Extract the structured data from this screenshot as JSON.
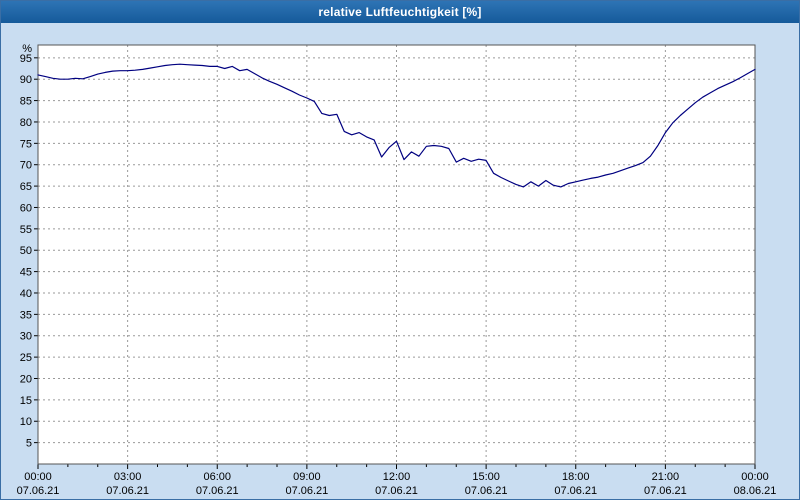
{
  "window": {
    "title": "relative Luftfeuchtigkeit [%]"
  },
  "colors": {
    "background": "#c9ddf1",
    "titlebar": "#1d63a8",
    "plot_background": "#ffffff",
    "plot_border": "#555555",
    "gridline": "#9a9a9a",
    "line": "#000080",
    "title_text": "#ffffff"
  },
  "chart_data": {
    "type": "line",
    "title": "relative Luftfeuchtigkeit [%]",
    "xlabel": "",
    "ylabel": "%",
    "unit_label": "%",
    "ylim": [
      0,
      98
    ],
    "xlim_hours": [
      0,
      24
    ],
    "grid": true,
    "legend": "none",
    "y_ticks": [
      95,
      90,
      85,
      80,
      75,
      70,
      65,
      60,
      55,
      50,
      45,
      40,
      35,
      30,
      25,
      20,
      15,
      10,
      5
    ],
    "x_ticks": [
      {
        "hour": 0,
        "time": "00:00",
        "date": "07.06.21"
      },
      {
        "hour": 3,
        "time": "03:00",
        "date": "07.06.21"
      },
      {
        "hour": 6,
        "time": "06:00",
        "date": "07.06.21"
      },
      {
        "hour": 9,
        "time": "09:00",
        "date": "07.06.21"
      },
      {
        "hour": 12,
        "time": "12:00",
        "date": "07.06.21"
      },
      {
        "hour": 15,
        "time": "15:00",
        "date": "07.06.21"
      },
      {
        "hour": 18,
        "time": "18:00",
        "date": "07.06.21"
      },
      {
        "hour": 21,
        "time": "21:00",
        "date": "07.06.21"
      },
      {
        "hour": 24,
        "time": "00:00",
        "date": "08.06.21"
      }
    ],
    "series": [
      {
        "name": "relative Luftfeuchtigkeit",
        "color": "#000080",
        "x_start_hour": 0,
        "x_step_hour": 0.25,
        "values": [
          91.0,
          90.6,
          90.2,
          90.0,
          90.0,
          90.2,
          90.1,
          90.6,
          91.2,
          91.6,
          91.9,
          92.0,
          92.0,
          92.1,
          92.3,
          92.6,
          92.9,
          93.2,
          93.4,
          93.5,
          93.4,
          93.3,
          93.2,
          93.0,
          93.0,
          92.5,
          93.0,
          92.0,
          92.3,
          91.3,
          90.3,
          89.5,
          88.8,
          88.0,
          87.2,
          86.3,
          85.6,
          84.8,
          82.0,
          81.5,
          81.8,
          77.8,
          77.0,
          77.5,
          76.5,
          75.8,
          71.8,
          74.0,
          75.5,
          71.2,
          73.0,
          72.0,
          74.3,
          74.5,
          74.3,
          73.8,
          70.6,
          71.5,
          70.8,
          71.3,
          71.0,
          68.0,
          67.0,
          66.2,
          65.4,
          64.8,
          66.0,
          65.0,
          66.3,
          65.2,
          64.8,
          65.6,
          66.0,
          66.4,
          66.8,
          67.1,
          67.6,
          68.0,
          68.6,
          69.2,
          69.8,
          70.5,
          72.0,
          74.5,
          77.5,
          79.8,
          81.5,
          83.0,
          84.5,
          85.8,
          86.8,
          87.8,
          88.6,
          89.4,
          90.3,
          91.3,
          92.3
        ]
      }
    ]
  }
}
